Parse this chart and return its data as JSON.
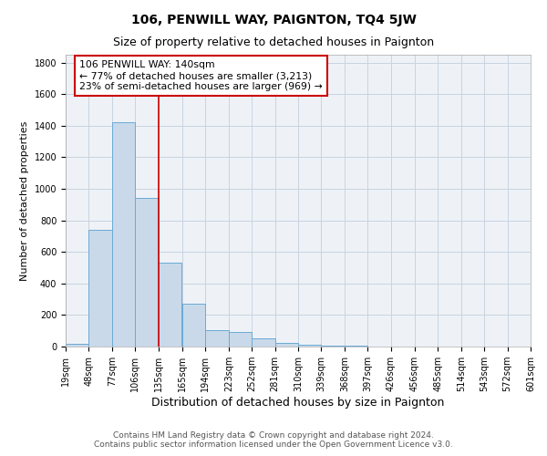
{
  "title": "106, PENWILL WAY, PAIGNTON, TQ4 5JW",
  "subtitle": "Size of property relative to detached houses in Paignton",
  "xlabel": "Distribution of detached houses by size in Paignton",
  "ylabel": "Number of detached properties",
  "footer_line1": "Contains HM Land Registry data © Crown copyright and database right 2024.",
  "footer_line2": "Contains public sector information licensed under the Open Government Licence v3.0.",
  "bin_labels": [
    "19sqm",
    "48sqm",
    "77sqm",
    "106sqm",
    "135sqm",
    "165sqm",
    "194sqm",
    "223sqm",
    "252sqm",
    "281sqm",
    "310sqm",
    "339sqm",
    "368sqm",
    "397sqm",
    "426sqm",
    "456sqm",
    "485sqm",
    "514sqm",
    "543sqm",
    "572sqm",
    "601sqm"
  ],
  "bar_heights": [
    20,
    740,
    1420,
    940,
    530,
    270,
    105,
    90,
    50,
    25,
    12,
    5,
    3,
    2,
    1,
    1,
    0,
    0,
    0,
    0,
    0
  ],
  "bin_edges": [
    19,
    48,
    77,
    106,
    135,
    165,
    194,
    223,
    252,
    281,
    310,
    339,
    368,
    397,
    426,
    456,
    485,
    514,
    543,
    572,
    601
  ],
  "bar_color": "#c9d9ea",
  "bar_edge_color": "#6aaad4",
  "vline_x": 135,
  "vline_color": "#cc0000",
  "annotation_text": "106 PENWILL WAY: 140sqm\n← 77% of detached houses are smaller (3,213)\n23% of semi-detached houses are larger (969) →",
  "annotation_box_color": "#cc0000",
  "ylim": [
    0,
    1850
  ],
  "yticks": [
    0,
    200,
    400,
    600,
    800,
    1000,
    1200,
    1400,
    1600,
    1800
  ],
  "grid_color": "#c8d4e0",
  "bg_color": "#eef2f7",
  "title_fontsize": 10,
  "subtitle_fontsize": 9,
  "xlabel_fontsize": 9,
  "ylabel_fontsize": 8,
  "tick_fontsize": 7,
  "footer_fontsize": 6.5
}
